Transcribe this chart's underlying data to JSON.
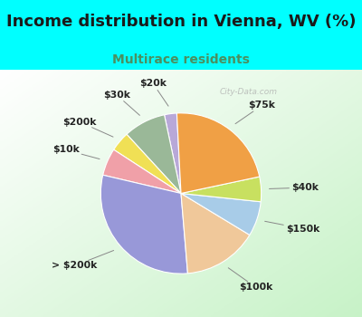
{
  "title": "Income distribution in Vienna, WV (%)",
  "subtitle": "Multirace residents",
  "title_color": "#1a1a1a",
  "subtitle_color": "#4a9060",
  "background_color": "#00ffff",
  "chart_bg_top": "#ffffff",
  "chart_bg_bottom": "#c8e8c8",
  "watermark": "City-Data.com",
  "labels": [
    "$20k",
    "$30k",
    "$200k",
    "$10k",
    "> $200k",
    "$100k",
    "$150k",
    "$40k",
    "$75k"
  ],
  "values": [
    2.5,
    8.5,
    4.0,
    5.5,
    30.0,
    15.0,
    7.0,
    5.0,
    22.5
  ],
  "colors": [
    "#b8a8d8",
    "#9ab898",
    "#f0e055",
    "#f0a0a8",
    "#9898d8",
    "#f0c89a",
    "#a8cce8",
    "#c8e060",
    "#f0a045"
  ],
  "startangle": 93,
  "title_fontsize": 13,
  "subtitle_fontsize": 10
}
